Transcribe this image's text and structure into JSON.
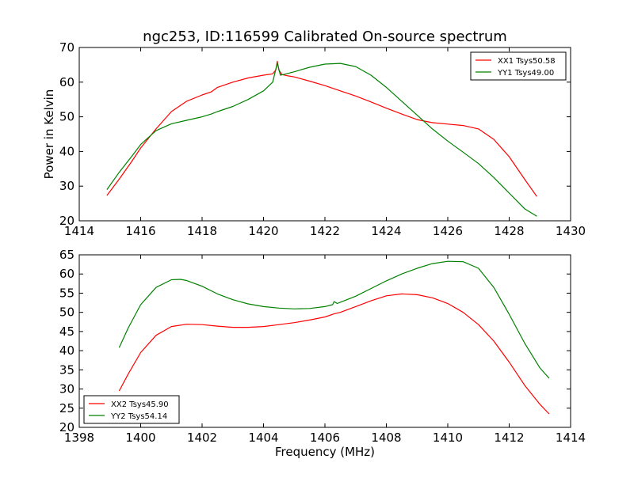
{
  "chart_data": [
    {
      "type": "line",
      "title": "ngc253, ID:116599 Calibrated On-source spectrum",
      "xlabel": "",
      "ylabel": "Power in Kelvin",
      "xlim": [
        1414,
        1430
      ],
      "ylim": [
        20,
        70
      ],
      "xticks": [
        "1414",
        "1416",
        "1418",
        "1420",
        "1422",
        "1424",
        "1426",
        "1428",
        "1430"
      ],
      "yticks": [
        "20",
        "30",
        "40",
        "50",
        "60",
        "70"
      ],
      "legend_position": "top-right",
      "series": [
        {
          "name": "XX1 Tsys50.58",
          "color": "#ff0000",
          "x": [
            1414.9,
            1415.3,
            1415.7,
            1416.0,
            1416.5,
            1417.0,
            1417.5,
            1418.0,
            1418.3,
            1418.5,
            1419.0,
            1419.5,
            1420.0,
            1420.3,
            1420.4,
            1420.45,
            1420.5,
            1420.6,
            1420.8,
            1421.0,
            1421.5,
            1422.0,
            1422.5,
            1423.0,
            1423.5,
            1424.0,
            1424.5,
            1425.0,
            1425.5,
            1426.0,
            1426.5,
            1427.0,
            1427.5,
            1428.0,
            1428.5,
            1428.9
          ],
          "y": [
            27.3,
            32.0,
            37.0,
            41.0,
            46.5,
            51.5,
            54.5,
            56.3,
            57.2,
            58.5,
            60.0,
            61.2,
            62.0,
            62.4,
            63.5,
            66.0,
            63.5,
            62.2,
            61.8,
            61.5,
            60.3,
            59.0,
            57.5,
            56.0,
            54.3,
            52.5,
            50.8,
            49.2,
            48.3,
            47.9,
            47.5,
            46.5,
            43.5,
            38.5,
            32.0,
            27.0
          ]
        },
        {
          "name": "YY1 Tsys49.00",
          "color": "#008000",
          "x": [
            1414.9,
            1415.3,
            1415.7,
            1416.0,
            1416.5,
            1417.0,
            1417.5,
            1418.0,
            1418.3,
            1418.5,
            1419.0,
            1419.5,
            1420.0,
            1420.3,
            1420.45,
            1420.55,
            1420.7,
            1421.0,
            1421.5,
            1422.0,
            1422.5,
            1423.0,
            1423.5,
            1424.0,
            1424.5,
            1425.0,
            1425.5,
            1426.0,
            1426.5,
            1427.0,
            1427.5,
            1428.0,
            1428.5,
            1428.9
          ],
          "y": [
            29.0,
            34.0,
            38.5,
            42.0,
            46.0,
            48.0,
            49.0,
            50.0,
            50.8,
            51.5,
            53.0,
            55.0,
            57.5,
            60.0,
            65.5,
            62.0,
            62.3,
            63.0,
            64.3,
            65.2,
            65.4,
            64.5,
            62.0,
            58.5,
            54.5,
            50.5,
            46.5,
            43.0,
            39.8,
            36.5,
            32.5,
            28.0,
            23.5,
            21.3
          ]
        }
      ]
    },
    {
      "type": "line",
      "title": "",
      "xlabel": "Frequency (MHz)",
      "ylabel": "",
      "xlim": [
        1398,
        1414
      ],
      "ylim": [
        20,
        65
      ],
      "xticks": [
        "1398",
        "1400",
        "1402",
        "1404",
        "1406",
        "1408",
        "1410",
        "1412",
        "1414"
      ],
      "yticks": [
        "20",
        "25",
        "30",
        "35",
        "40",
        "45",
        "50",
        "55",
        "60",
        "65"
      ],
      "legend_position": "bottom-left",
      "series": [
        {
          "name": "XX2 Tsys45.90",
          "color": "#ff0000",
          "x": [
            1399.3,
            1399.6,
            1400.0,
            1400.5,
            1401.0,
            1401.5,
            1402.0,
            1402.5,
            1403.0,
            1403.5,
            1404.0,
            1404.5,
            1405.0,
            1405.5,
            1406.0,
            1406.3,
            1406.5,
            1407.0,
            1407.5,
            1408.0,
            1408.5,
            1409.0,
            1409.5,
            1410.0,
            1410.5,
            1411.0,
            1411.5,
            1412.0,
            1412.5,
            1413.0,
            1413.3
          ],
          "y": [
            29.5,
            34.0,
            39.5,
            44.0,
            46.3,
            46.9,
            46.8,
            46.4,
            46.1,
            46.1,
            46.3,
            46.8,
            47.3,
            48.0,
            48.8,
            49.6,
            50.0,
            51.5,
            53.0,
            54.3,
            54.8,
            54.6,
            53.8,
            52.3,
            50.0,
            46.8,
            42.5,
            37.0,
            31.0,
            26.0,
            23.5
          ]
        },
        {
          "name": "YY2 Tsys54.14",
          "color": "#008000",
          "x": [
            1399.3,
            1399.6,
            1400.0,
            1400.5,
            1401.0,
            1401.3,
            1401.5,
            1402.0,
            1402.5,
            1403.0,
            1403.5,
            1404.0,
            1404.5,
            1405.0,
            1405.5,
            1406.0,
            1406.25,
            1406.3,
            1406.4,
            1407.0,
            1407.5,
            1408.0,
            1408.5,
            1409.0,
            1409.5,
            1410.0,
            1410.5,
            1411.0,
            1411.5,
            1412.0,
            1412.5,
            1413.0,
            1413.3
          ],
          "y": [
            40.8,
            46.0,
            52.0,
            56.5,
            58.5,
            58.6,
            58.3,
            56.8,
            54.8,
            53.3,
            52.2,
            51.5,
            51.1,
            50.9,
            51.0,
            51.5,
            52.0,
            52.8,
            52.3,
            54.2,
            56.2,
            58.2,
            60.0,
            61.5,
            62.7,
            63.3,
            63.2,
            61.5,
            56.5,
            49.5,
            42.0,
            35.5,
            32.8
          ]
        }
      ]
    }
  ]
}
